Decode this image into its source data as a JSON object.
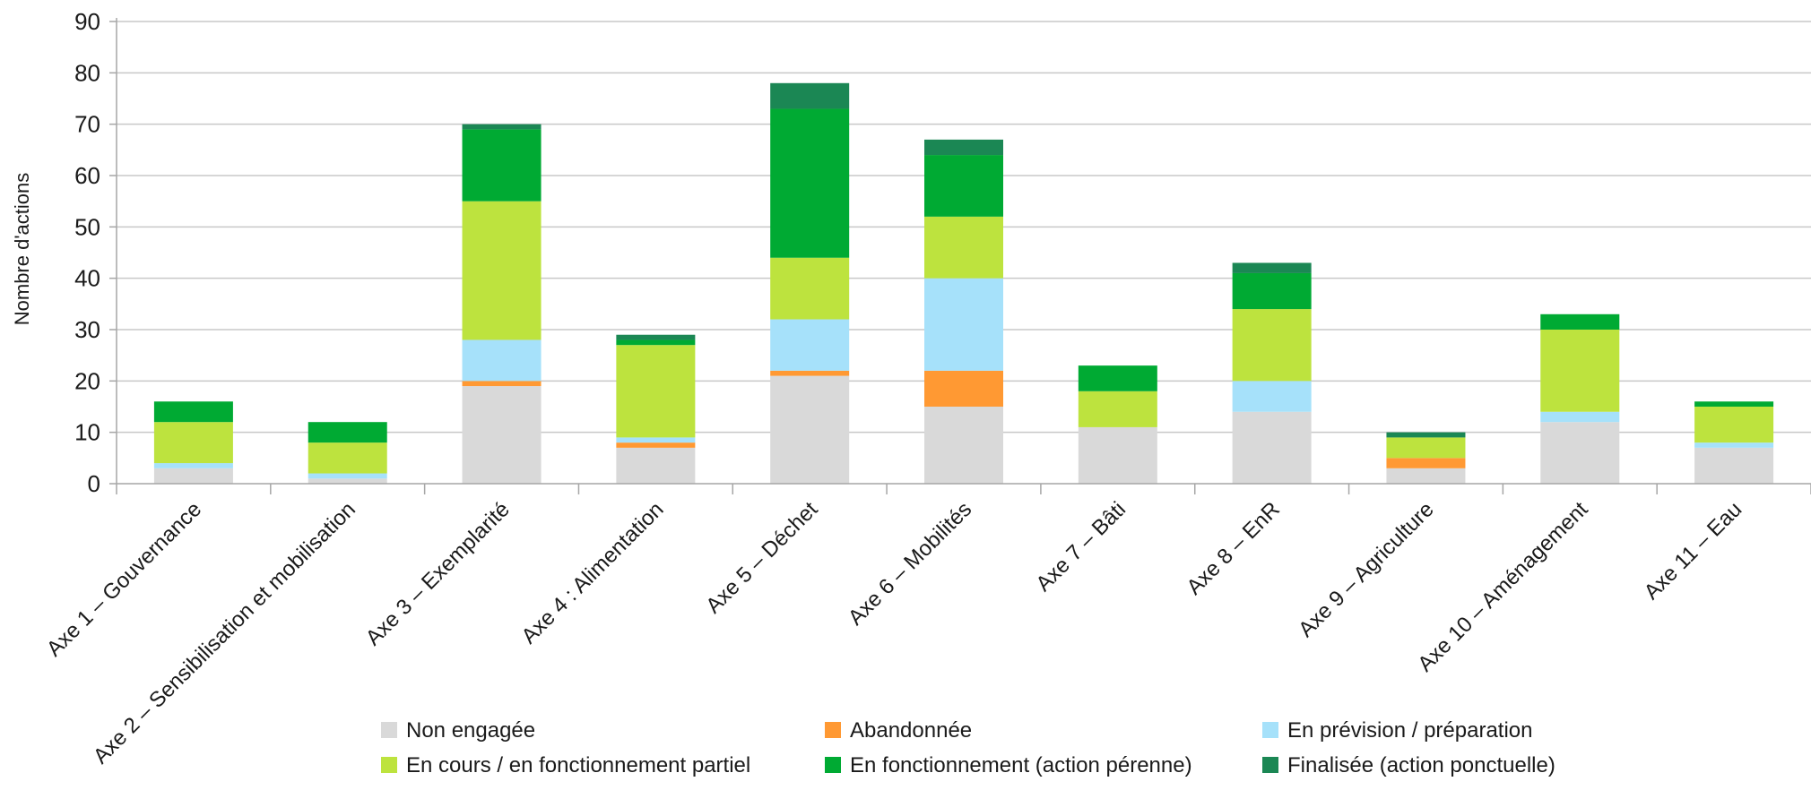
{
  "chart_data": {
    "type": "bar",
    "stacked": true,
    "title": "",
    "xlabel": "",
    "ylabel": "Nombre d'actions",
    "ylim": [
      0,
      90
    ],
    "yticks": [
      0,
      10,
      20,
      30,
      40,
      50,
      60,
      70,
      80,
      90
    ],
    "grid": true,
    "legend_position": "bottom",
    "categories": [
      "Axe 1 – Gouvernance",
      "Axe 2 – Sensibilisation et mobilisation",
      "Axe 3 – Exemplarité",
      "Axe 4 : Alimentation",
      "Axe 5 – Déchet",
      "Axe 6 – Mobilités",
      "Axe 7 – Bâti",
      "Axe 8 – EnR",
      "Axe 9 – Agriculture",
      "Axe 10 – Aménagement",
      "Axe 11 – Eau"
    ],
    "series": [
      {
        "name": "Non engagée",
        "color": "#d9d9d9",
        "values": [
          3,
          1,
          19,
          7,
          21,
          15,
          11,
          14,
          3,
          12,
          7
        ]
      },
      {
        "name": "Abandonnée",
        "color": "#ff9933",
        "values": [
          0,
          0,
          1,
          1,
          1,
          7,
          0,
          0,
          2,
          0,
          0
        ]
      },
      {
        "name": "En prévision / préparation",
        "color": "#a6e1fa",
        "values": [
          1,
          1,
          8,
          1,
          10,
          18,
          0,
          6,
          0,
          2,
          1
        ]
      },
      {
        "name": "En cours / en fonctionnement partiel",
        "color": "#bde33e",
        "values": [
          8,
          6,
          27,
          18,
          12,
          12,
          7,
          14,
          4,
          16,
          7
        ]
      },
      {
        "name": "En fonctionnement (action pérenne)",
        "color": "#00aa33",
        "values": [
          4,
          4,
          14,
          1,
          29,
          12,
          5,
          7,
          0,
          3,
          1
        ]
      },
      {
        "name": "Finalisée (action ponctuelle)",
        "color": "#1b8754",
        "values": [
          0,
          0,
          1,
          1,
          5,
          3,
          0,
          2,
          1,
          0,
          0
        ]
      }
    ]
  }
}
